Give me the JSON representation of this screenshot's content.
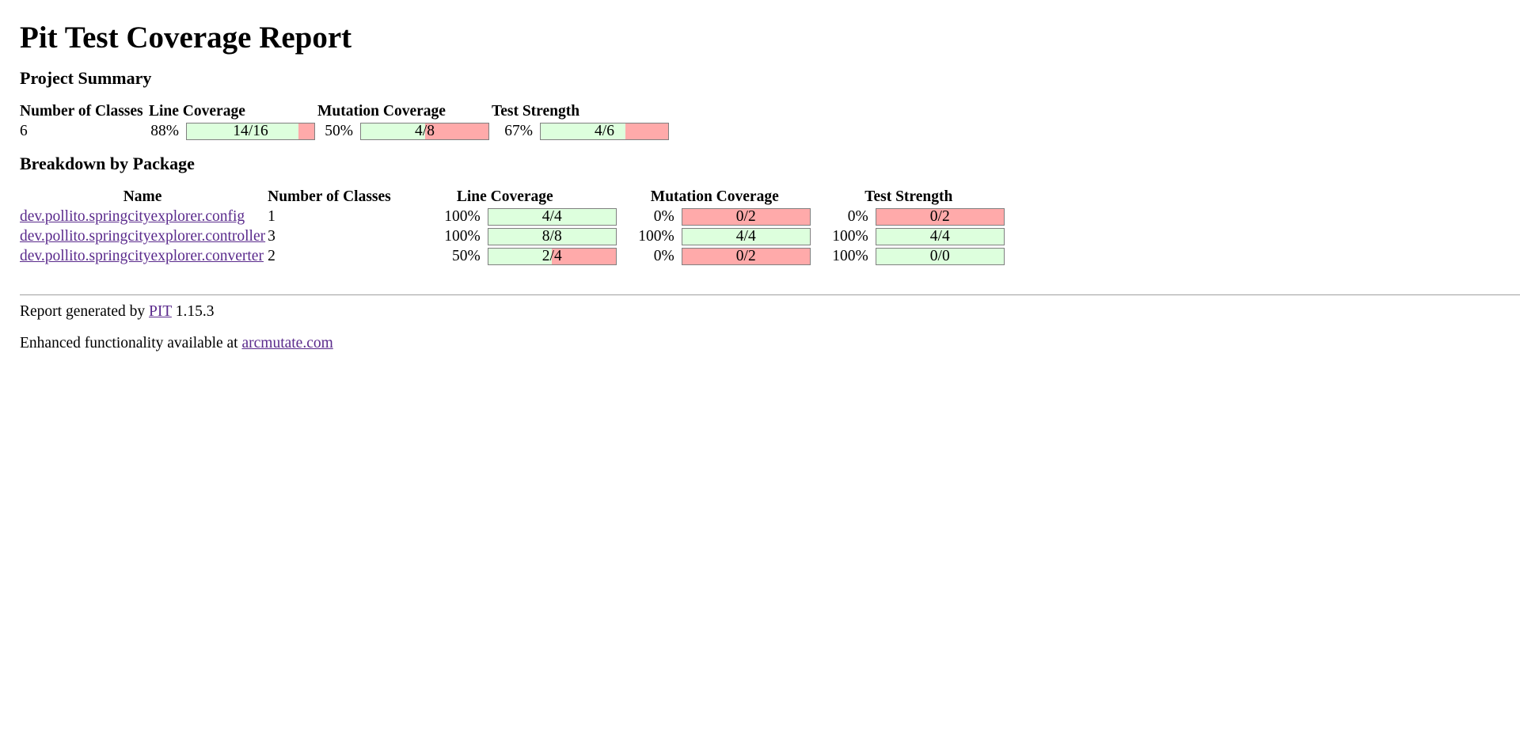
{
  "title": "Pit Test Coverage Report",
  "summary": {
    "heading": "Project Summary",
    "headers": {
      "classes": "Number of Classes",
      "line": "Line Coverage",
      "mutation": "Mutation Coverage",
      "strength": "Test Strength"
    },
    "row": {
      "classes": "6",
      "line": {
        "pct": "88%",
        "label": "14/16",
        "fraction": 0.875
      },
      "mutation": {
        "pct": "50%",
        "label": "4/8",
        "fraction": 0.5
      },
      "strength": {
        "pct": "67%",
        "label": "4/6",
        "fraction": 0.667
      }
    }
  },
  "breakdown": {
    "heading": "Breakdown by Package",
    "headers": {
      "name": "Name",
      "classes": "Number of Classes",
      "line": "Line Coverage",
      "mutation": "Mutation Coverage",
      "strength": "Test Strength"
    },
    "rows": [
      {
        "name": "dev.pollito.springcityexplorer.config",
        "classes": "1",
        "line": {
          "pct": "100%",
          "label": "4/4",
          "fraction": 1.0
        },
        "mutation": {
          "pct": "0%",
          "label": "0/2",
          "fraction": 0.0
        },
        "strength": {
          "pct": "0%",
          "label": "0/2",
          "fraction": 0.0
        }
      },
      {
        "name": "dev.pollito.springcityexplorer.controller",
        "classes": "3",
        "line": {
          "pct": "100%",
          "label": "8/8",
          "fraction": 1.0
        },
        "mutation": {
          "pct": "100%",
          "label": "4/4",
          "fraction": 1.0
        },
        "strength": {
          "pct": "100%",
          "label": "4/4",
          "fraction": 1.0
        }
      },
      {
        "name": "dev.pollito.springcityexplorer.converter",
        "classes": "2",
        "line": {
          "pct": "50%",
          "label": "2/4",
          "fraction": 0.5
        },
        "mutation": {
          "pct": "0%",
          "label": "0/2",
          "fraction": 0.0
        },
        "strength": {
          "pct": "100%",
          "label": "0/0",
          "fraction": 1.0
        }
      }
    ]
  },
  "footer": {
    "generated_prefix": "Report generated by ",
    "pit_link": "PIT",
    "version": " 1.15.3",
    "enhanced_prefix": "Enhanced functionality available at ",
    "arcmutate_link": "arcmutate.com"
  },
  "colors": {
    "covered": "#ddffdd",
    "uncovered": "#ffaaaa",
    "link": "#5a2a8c"
  }
}
